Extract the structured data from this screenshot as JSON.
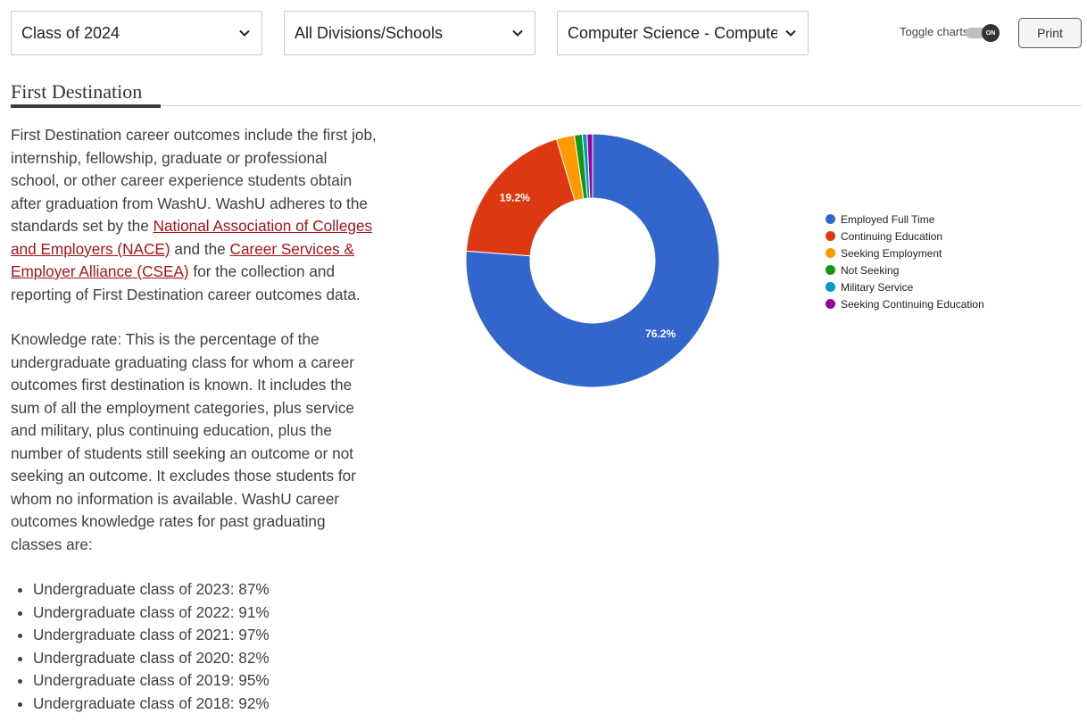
{
  "filters": {
    "class": "Class of 2024",
    "division": "All Divisions/Schools",
    "major": "Computer Science - Compute..."
  },
  "toggle": {
    "label": "Toggle charts",
    "state": "ON"
  },
  "print_label": "Print",
  "section": {
    "title": "First Destination",
    "para1_a": "First Destination career outcomes include the first job, internship, fellowship, graduate or professional school, or other career experience students obtain after graduation from WashU. WashU adheres to the standards set by the ",
    "link_nace": "National Association of Colleges and Employers (NACE)",
    "para1_b": " and the ",
    "link_csea": "Career Services & Employer Alliance (CSEA)",
    "para1_c": " for the collection and reporting of First Destination career outcomes data.",
    "para2": "Knowledge rate: This is the percentage of the undergraduate graduating class for whom a career outcomes first destination is known. It includes the sum of all the employment categories, plus service and military, plus continuing education, plus the number of students still seeking an outcome or not seeking an outcome. It excludes those students for whom no information is available. WashU career outcomes knowledge rates for past graduating classes are:",
    "rates": [
      "Undergraduate class of 2023: 87%",
      "Undergraduate class of 2022: 91%",
      "Undergraduate class of 2021: 97%",
      "Undergraduate class of 2020: 82%",
      "Undergraduate class of 2019: 95%",
      "Undergraduate class of 2018: 92%"
    ]
  },
  "chart_data": {
    "type": "pie",
    "donut": true,
    "categories": [
      "Employed Full Time",
      "Continuing Education",
      "Seeking Employment",
      "Not Seeking",
      "Military Service",
      "Seeking Continuing Education"
    ],
    "values": [
      76.2,
      19.2,
      2.3,
      1.0,
      0.6,
      0.7
    ],
    "data_labels": [
      "76.2%",
      "19.2%",
      "",
      "",
      "",
      ""
    ],
    "colors": [
      "#3366cc",
      "#dc3912",
      "#ff9900",
      "#109618",
      "#0099c6",
      "#990099"
    ],
    "legend_position": "right"
  }
}
